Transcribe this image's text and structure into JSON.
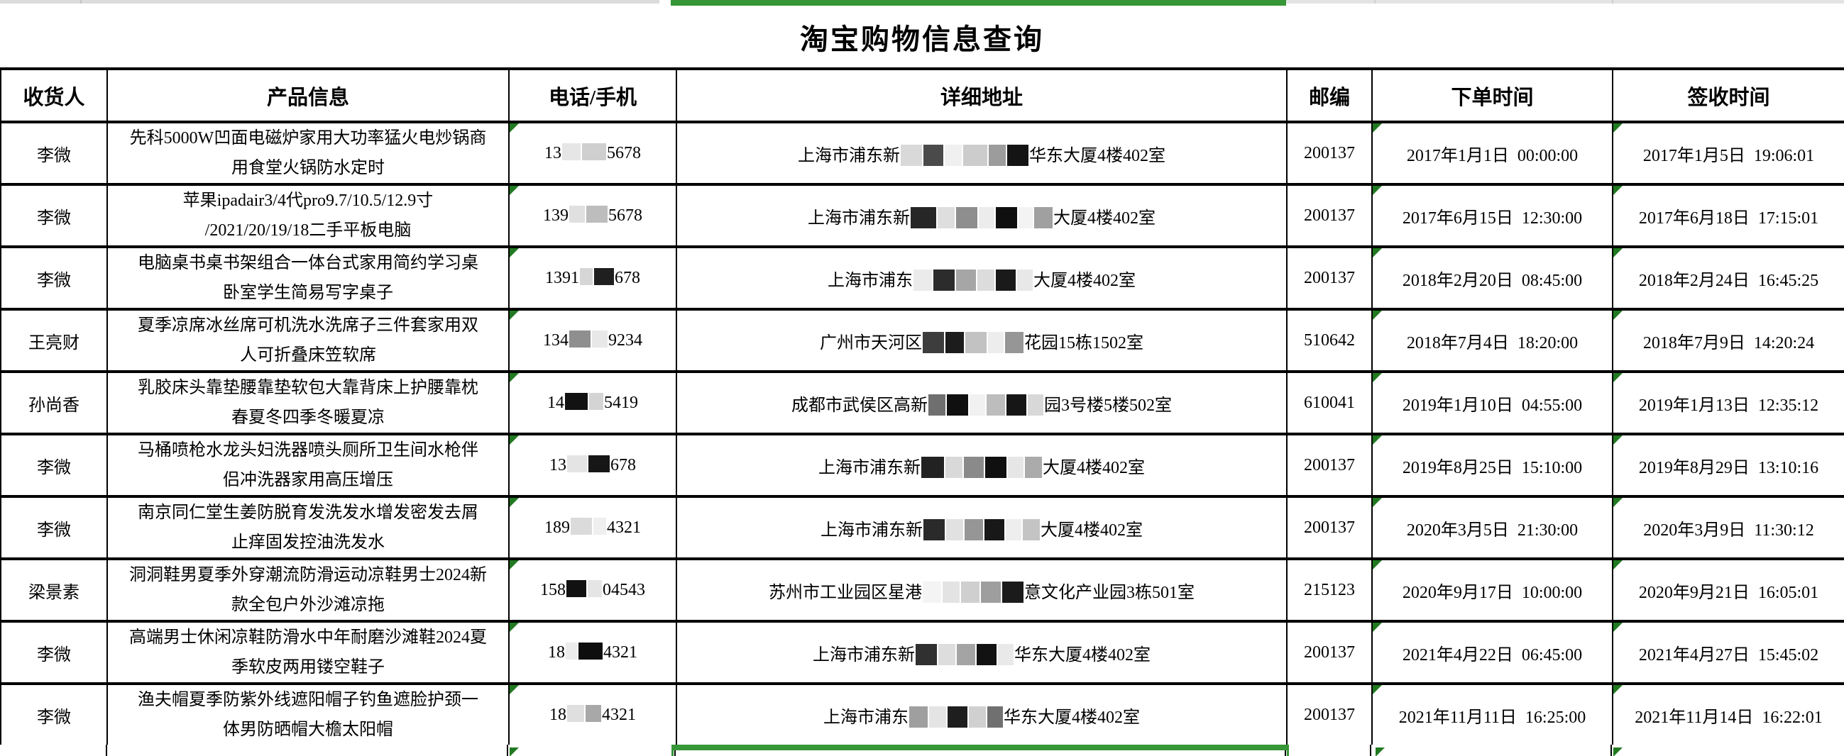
{
  "page": {
    "title": "淘宝购物信息查询"
  },
  "colors": {
    "selection_green": "#379637",
    "error_triangle_green": "#217a21"
  },
  "table": {
    "headers": [
      "收货人",
      "产品信息",
      "电话/手机",
      "详细地址",
      "邮编",
      "下单时间",
      "签收时间"
    ],
    "rows": [
      {
        "recipient": "李微",
        "product_line1": "先科5000W凹面电磁炉家用大功率猛火电炒锅商",
        "product_line2": "用食堂火锅防水定时",
        "phone_prefix": "13",
        "phone_suffix": "5678",
        "phone_redaction": [
          {
            "c": "#e6e6e6",
            "w": 26
          },
          {
            "c": "#cfcfcf",
            "w": 34
          }
        ],
        "addr_prefix": "上海市浦东新",
        "addr_redaction": [
          {
            "c": "#d9d9d9",
            "w": 30
          },
          {
            "c": "#4a4a4a",
            "w": 28
          },
          {
            "c": "#f0f0f0",
            "w": 24
          },
          {
            "c": "#cccccc",
            "w": 34
          },
          {
            "c": "#9c9c9c",
            "w": 24
          },
          {
            "c": "#141414",
            "w": 30
          }
        ],
        "addr_suffix": "华东大厦4楼402室",
        "zip": "200137",
        "order_time": "2017年1月1日 00:00:00",
        "sign_time": "2017年1月5日 19:06:01"
      },
      {
        "recipient": "李微",
        "product_line1": "苹果ipadair3/4代pro9.7/10.5/12.9寸",
        "product_line2": "/2021/20/19/18二手平板电脑",
        "phone_prefix": "139",
        "phone_suffix": "5678",
        "phone_redaction": [
          {
            "c": "#e0e0e0",
            "w": 22
          },
          {
            "c": "#bdbdbd",
            "w": 30
          }
        ],
        "addr_prefix": "上海市浦东新",
        "addr_redaction": [
          {
            "c": "#262626",
            "w": 36
          },
          {
            "c": "#dedede",
            "w": 24
          },
          {
            "c": "#8e8e8e",
            "w": 30
          },
          {
            "c": "#ececec",
            "w": 22
          },
          {
            "c": "#0f0f0f",
            "w": 30
          },
          {
            "c": "#f3f3f3",
            "w": 20
          },
          {
            "c": "#a0a0a0",
            "w": 26
          }
        ],
        "addr_suffix": "大厦4楼402室",
        "zip": "200137",
        "order_time": "2017年6月15日 12:30:00",
        "sign_time": "2017年6月18日 17:15:01"
      },
      {
        "recipient": "李微",
        "product_line1": "电脑桌书桌书架组合一体台式家用简约学习桌",
        "product_line2": "卧室学生简易写字桌子",
        "phone_prefix": "1391",
        "phone_suffix": "678",
        "phone_redaction": [
          {
            "c": "#d6d6d6",
            "w": 18
          },
          {
            "c": "#1f1f1f",
            "w": 28
          }
        ],
        "addr_prefix": "上海市浦东",
        "addr_redaction": [
          {
            "c": "#ebebeb",
            "w": 26
          },
          {
            "c": "#2c2c2c",
            "w": 30
          },
          {
            "c": "#a6a6a6",
            "w": 28
          },
          {
            "c": "#dcdcdc",
            "w": 24
          },
          {
            "c": "#1a1a1a",
            "w": 28
          },
          {
            "c": "#e8e8e8",
            "w": 22
          }
        ],
        "addr_suffix": "大厦4楼402室",
        "zip": "200137",
        "order_time": "2018年2月20日 08:45:00",
        "sign_time": "2018年2月24日 16:45:25"
      },
      {
        "recipient": "王亮财",
        "product_line1": "夏季凉席冰丝席可机洗水洗席子三件套家用双",
        "product_line2": "人可折叠床笠软席",
        "phone_prefix": "134",
        "phone_suffix": "9234",
        "phone_redaction": [
          {
            "c": "#8f8f8f",
            "w": 30
          },
          {
            "c": "#e8e8e8",
            "w": 22
          }
        ],
        "addr_prefix": "广州市天河区",
        "addr_redaction": [
          {
            "c": "#3d3d3d",
            "w": 30
          },
          {
            "c": "#1c1c1c",
            "w": 26
          },
          {
            "c": "#c2c2c2",
            "w": 30
          },
          {
            "c": "#ededed",
            "w": 22
          },
          {
            "c": "#969696",
            "w": 26
          }
        ],
        "addr_suffix": "花园15栋1502室",
        "zip": "510642",
        "order_time": "2018年7月4日 18:20:00",
        "sign_time": "2018年7月9日 14:20:24"
      },
      {
        "recipient": "孙尚香",
        "product_line1": "乳胶床头靠垫腰靠垫软包大靠背床上护腰靠枕",
        "product_line2": "春夏冬四季冬暖夏凉",
        "phone_prefix": "14",
        "phone_suffix": "5419",
        "phone_redaction": [
          {
            "c": "#121212",
            "w": 32
          },
          {
            "c": "#d4d4d4",
            "w": 20
          }
        ],
        "addr_prefix": "成都市武侯区高新",
        "addr_redaction": [
          {
            "c": "#6f6f6f",
            "w": 24
          },
          {
            "c": "#101010",
            "w": 30
          },
          {
            "c": "#f1f1f1",
            "w": 22
          },
          {
            "c": "#bdbdbd",
            "w": 26
          },
          {
            "c": "#161616",
            "w": 28
          },
          {
            "c": "#d8d8d8",
            "w": 22
          }
        ],
        "addr_suffix": "园3号楼5楼502室",
        "zip": "610041",
        "order_time": "2019年1月10日 04:55:00",
        "sign_time": "2019年1月13日 12:35:12"
      },
      {
        "recipient": "李微",
        "product_line1": "马桶喷枪水龙头妇洗器喷头厕所卫生间水枪伴",
        "product_line2": "侣冲洗器家用高压增压",
        "phone_prefix": "13",
        "phone_suffix": "678",
        "phone_redaction": [
          {
            "c": "#e4e4e4",
            "w": 28
          },
          {
            "c": "#161616",
            "w": 30
          }
        ],
        "addr_prefix": "上海市浦东新",
        "addr_redaction": [
          {
            "c": "#222222",
            "w": 32
          },
          {
            "c": "#d9d9d9",
            "w": 24
          },
          {
            "c": "#8a8a8a",
            "w": 28
          },
          {
            "c": "#101010",
            "w": 30
          },
          {
            "c": "#e6e6e6",
            "w": 22
          },
          {
            "c": "#ababab",
            "w": 24
          }
        ],
        "addr_suffix": "大厦4楼402室",
        "zip": "200137",
        "order_time": "2019年8月25日 15:10:00",
        "sign_time": "2019年8月29日 13:10:16"
      },
      {
        "recipient": "李微",
        "product_line1": "南京同仁堂生姜防脱育发洗发水增发密发去屑",
        "product_line2": "止痒固发控油洗发水",
        "phone_prefix": "189",
        "phone_suffix": "4321",
        "phone_redaction": [
          {
            "c": "#dbdbdb",
            "w": 30
          },
          {
            "c": "#efefef",
            "w": 18
          }
        ],
        "addr_prefix": "上海市浦东新",
        "addr_redaction": [
          {
            "c": "#2a2a2a",
            "w": 30
          },
          {
            "c": "#e1e1e1",
            "w": 24
          },
          {
            "c": "#969696",
            "w": 26
          },
          {
            "c": "#181818",
            "w": 28
          },
          {
            "c": "#eeeeee",
            "w": 22
          },
          {
            "c": "#c4c4c4",
            "w": 24
          }
        ],
        "addr_suffix": "大厦4楼402室",
        "zip": "200137",
        "order_time": "2020年3月5日 21:30:00",
        "sign_time": "2020年3月9日 11:30:12"
      },
      {
        "recipient": "梁景素",
        "product_line1": "洞洞鞋男夏季外穿潮流防滑运动凉鞋男士2024新",
        "product_line2": "款全包户外沙滩凉拖",
        "phone_prefix": "158",
        "phone_suffix": "04543",
        "phone_redaction": [
          {
            "c": "#111111",
            "w": 28
          },
          {
            "c": "#e5e5e5",
            "w": 20
          }
        ],
        "addr_prefix": "苏州市工业园区星港",
        "addr_redaction": [
          {
            "c": "#f4f4f4",
            "w": 26
          },
          {
            "c": "#e3e3e3",
            "w": 24
          },
          {
            "c": "#cfcfcf",
            "w": 26
          },
          {
            "c": "#9e9e9e",
            "w": 28
          },
          {
            "c": "#1b1b1b",
            "w": 30
          }
        ],
        "addr_suffix": "意文化产业园3栋501室",
        "zip": "215123",
        "order_time": "2020年9月17日 10:00:00",
        "sign_time": "2020年9月21日 16:05:01"
      },
      {
        "recipient": "李微",
        "product_line1": "高端男士休闲凉鞋防滑水中年耐磨沙滩鞋2024夏",
        "product_line2": "季软皮两用镂空鞋子",
        "phone_prefix": "18",
        "phone_suffix": "4321",
        "phone_redaction": [
          {
            "c": "#ececec",
            "w": 16
          },
          {
            "c": "#0e0e0e",
            "w": 34
          }
        ],
        "addr_prefix": "上海市浦东新",
        "addr_redaction": [
          {
            "c": "#303030",
            "w": 30
          },
          {
            "c": "#dddddd",
            "w": 24
          },
          {
            "c": "#a4a4a4",
            "w": 26
          },
          {
            "c": "#121212",
            "w": 28
          },
          {
            "c": "#e9e9e9",
            "w": 22
          }
        ],
        "addr_suffix": "华东大厦4楼402室",
        "zip": "200137",
        "order_time": "2021年4月22日 06:45:00",
        "sign_time": "2021年4月27日 15:45:02"
      },
      {
        "recipient": "李微",
        "product_line1": "渔夫帽夏季防紫外线遮阳帽子钓鱼遮脸护颈一",
        "product_line2": "体男防晒帽大檐太阳帽",
        "phone_prefix": "18",
        "phone_suffix": "4321",
        "phone_redaction": [
          {
            "c": "#dfdfdf",
            "w": 24
          },
          {
            "c": "#a8a8a8",
            "w": 22
          }
        ],
        "addr_prefix": "上海市浦东",
        "addr_redaction": [
          {
            "c": "#9f9f9f",
            "w": 26
          },
          {
            "c": "#e4e4e4",
            "w": 24
          },
          {
            "c": "#1e1e1e",
            "w": 28
          },
          {
            "c": "#d0d0d0",
            "w": 24
          },
          {
            "c": "#707070",
            "w": 22
          }
        ],
        "addr_suffix": "华东大厦4楼402室",
        "zip": "200137",
        "order_time": "2021年11月11日 16:25:00",
        "sign_time": "2021年11月14日 16:22:01"
      }
    ]
  }
}
